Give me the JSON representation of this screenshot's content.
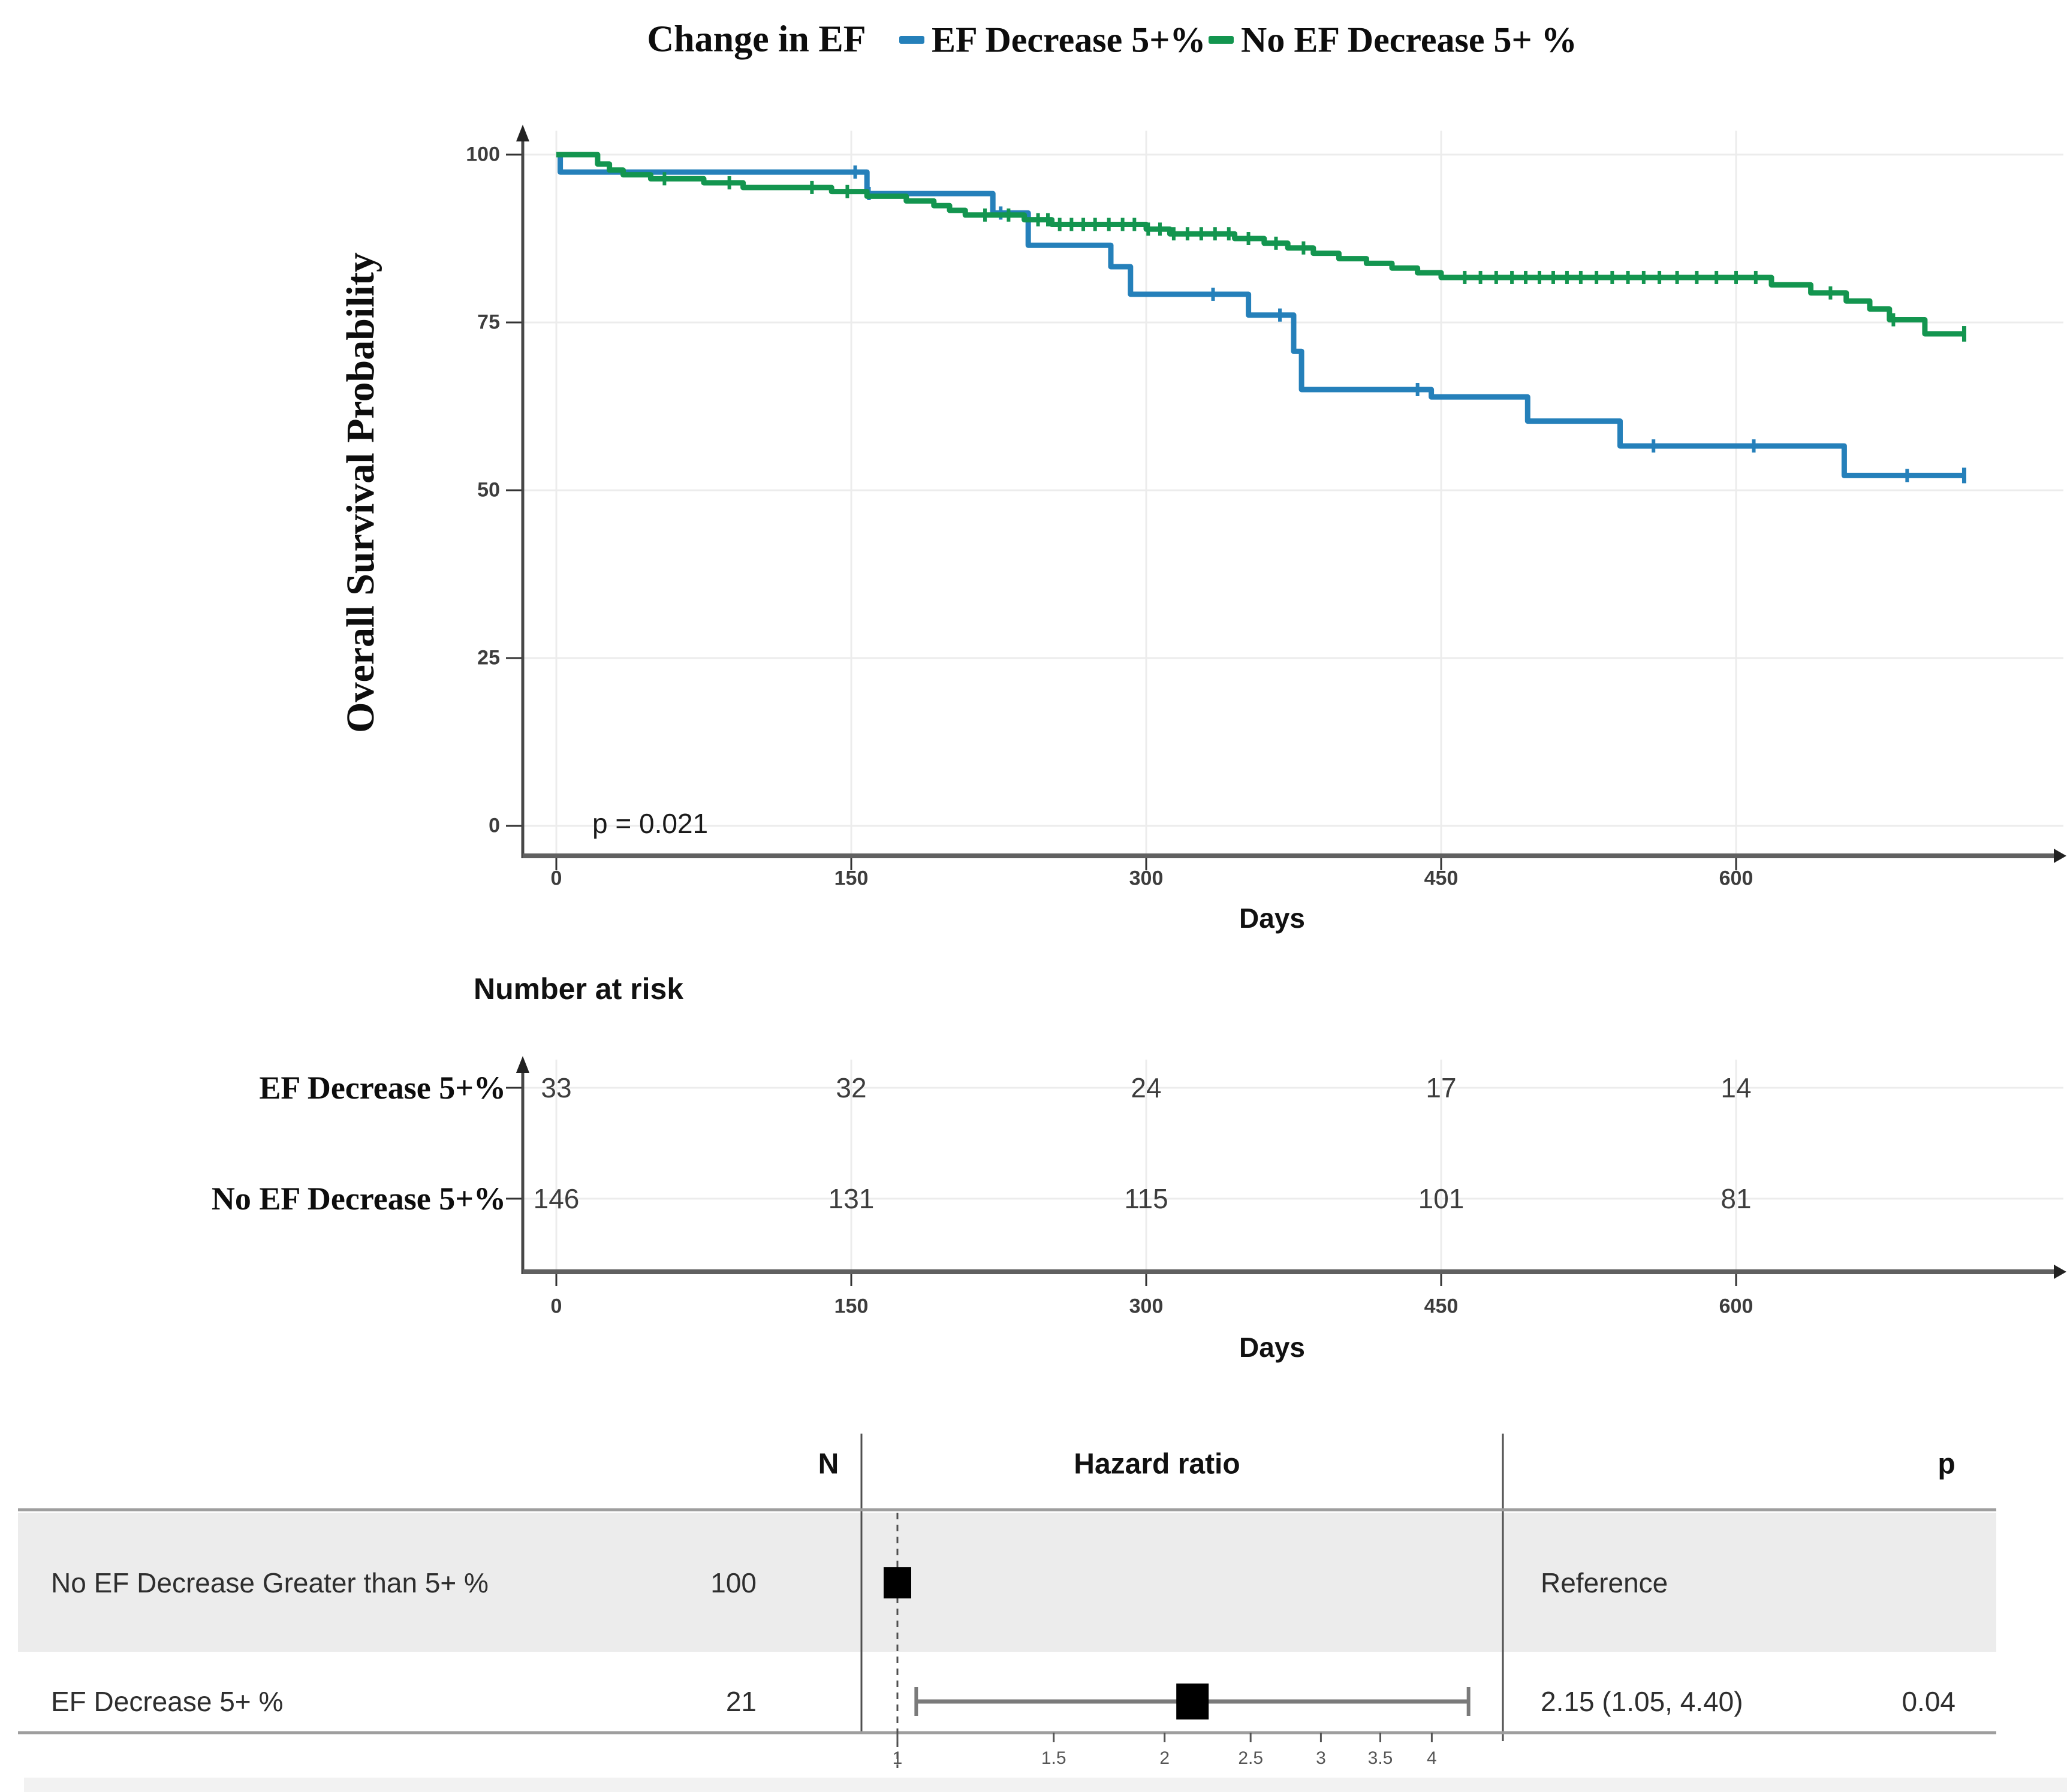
{
  "chart_data": {
    "km": {
      "type": "line",
      "subtype": "kaplan-meier-step",
      "title": "Change in EF",
      "ylabel": "Overall Survival Probability",
      "xlabel": "Days",
      "pvalue_label": "p = 0.021",
      "ylim": [
        0,
        100
      ],
      "yticks": [
        100,
        75,
        50,
        25,
        0
      ],
      "xticks": [
        0,
        150,
        300,
        450,
        600
      ],
      "grid": "on",
      "legend_position": "top",
      "series": [
        {
          "name": "EF Decrease 5+%",
          "color": "#2580ba",
          "steps": [
            [
              0,
              100
            ],
            [
              2,
              100
            ],
            [
              2,
              97.4
            ],
            [
              158,
              97.4
            ],
            [
              158,
              94.2
            ],
            [
              222,
              94.2
            ],
            [
              222,
              91.3
            ],
            [
              240,
              91.3
            ],
            [
              240,
              86.5
            ],
            [
              282,
              86.5
            ],
            [
              282,
              83.3
            ],
            [
              292,
              83.3
            ],
            [
              292,
              79.2
            ],
            [
              352,
              79.2
            ],
            [
              352,
              76.1
            ],
            [
              375,
              76.1
            ],
            [
              375,
              70.7
            ],
            [
              379,
              70.7
            ],
            [
              379,
              65.0
            ],
            [
              445,
              65.0
            ],
            [
              445,
              63.9
            ],
            [
              494,
              63.9
            ],
            [
              494,
              60.3
            ],
            [
              541,
              60.3
            ],
            [
              541,
              56.6
            ],
            [
              655,
              56.6
            ],
            [
              655,
              52.2
            ],
            [
              716,
              52.2
            ]
          ],
          "censor_days": [
            152,
            159,
            226,
            334,
            368,
            438,
            558,
            609,
            687
          ],
          "terminal_day": 716
        },
        {
          "name": "No EF Decrease 5+ %",
          "color": "#13954f",
          "steps": [
            [
              0,
              100
            ],
            [
              21,
              100
            ],
            [
              21,
              98.6
            ],
            [
              27,
              98.6
            ],
            [
              27,
              97.7
            ],
            [
              34,
              97.7
            ],
            [
              34,
              97.0
            ],
            [
              48,
              97.0
            ],
            [
              48,
              96.4
            ],
            [
              75,
              96.4
            ],
            [
              75,
              95.8
            ],
            [
              95,
              95.8
            ],
            [
              95,
              95.1
            ],
            [
              140,
              95.1
            ],
            [
              140,
              94.5
            ],
            [
              158,
              94.5
            ],
            [
              158,
              93.8
            ],
            [
              178,
              93.8
            ],
            [
              178,
              93.1
            ],
            [
              192,
              93.1
            ],
            [
              192,
              92.4
            ],
            [
              200,
              92.4
            ],
            [
              200,
              91.7
            ],
            [
              208,
              91.7
            ],
            [
              208,
              91.0
            ],
            [
              238,
              91.0
            ],
            [
              238,
              90.3
            ],
            [
              252,
              90.3
            ],
            [
              252,
              89.6
            ],
            [
              300,
              89.6
            ],
            [
              300,
              88.9
            ],
            [
              312,
              88.9
            ],
            [
              312,
              88.2
            ],
            [
              345,
              88.2
            ],
            [
              345,
              87.5
            ],
            [
              360,
              87.5
            ],
            [
              360,
              86.8
            ],
            [
              372,
              86.8
            ],
            [
              372,
              86.1
            ],
            [
              385,
              86.1
            ],
            [
              385,
              85.3
            ],
            [
              398,
              85.3
            ],
            [
              398,
              84.5
            ],
            [
              412,
              84.5
            ],
            [
              412,
              83.8
            ],
            [
              425,
              83.8
            ],
            [
              425,
              83.1
            ],
            [
              438,
              83.1
            ],
            [
              438,
              82.4
            ],
            [
              450,
              82.4
            ],
            [
              450,
              81.7
            ],
            [
              618,
              81.7
            ],
            [
              618,
              80.6
            ],
            [
              638,
              80.6
            ],
            [
              638,
              79.4
            ],
            [
              656,
              79.4
            ],
            [
              656,
              78.2
            ],
            [
              668,
              78.2
            ],
            [
              668,
              77.0
            ],
            [
              678,
              77.0
            ],
            [
              678,
              75.4
            ],
            [
              696,
              75.4
            ],
            [
              696,
              73.3
            ],
            [
              716,
              73.3
            ]
          ],
          "censor_days": [
            55,
            88,
            130,
            148,
            218,
            230,
            245,
            250,
            256,
            262,
            268,
            274,
            281,
            288,
            294,
            301,
            307,
            314,
            321,
            328,
            335,
            342,
            352,
            366,
            380,
            462,
            470,
            478,
            486,
            493,
            500,
            507,
            514,
            521,
            529,
            537,
            545,
            553,
            561,
            570,
            580,
            590,
            600,
            610,
            648,
            680
          ],
          "terminal_day": 716
        }
      ]
    },
    "risk_table": {
      "type": "table",
      "title": "Number at risk",
      "xlabel": "Days",
      "xticks": [
        0,
        150,
        300,
        450,
        600
      ],
      "rows": [
        {
          "label": "EF Decrease 5+%",
          "values": [
            "33",
            "32",
            "24",
            "17",
            "14"
          ]
        },
        {
          "label": "No EF Decrease 5+%",
          "values": [
            "146",
            "131",
            "115",
            "101",
            "81"
          ]
        }
      ]
    },
    "forest": {
      "type": "scatter",
      "subtype": "forest-plot",
      "columns": {
        "n": "N",
        "hazard": "Hazard ratio",
        "p": "p"
      },
      "axis_scale": "log",
      "axis_ticks": [
        "1",
        "1.5",
        "2",
        "2.5",
        "3",
        "3.5",
        "4"
      ],
      "axis_tick_values": [
        1,
        1.5,
        2,
        2.5,
        3,
        3.5,
        4
      ],
      "reference_line": 1,
      "shade_color": "#ececec",
      "rows": [
        {
          "label": "No EF Decrease Greater than 5+ %",
          "n": "100",
          "hr": 1,
          "ci_low": null,
          "ci_high": null,
          "hr_text": "Reference",
          "p_text": "",
          "shaded": true
        },
        {
          "label": "EF Decrease 5+ %",
          "n": "21",
          "hr": 2.15,
          "ci_low": 1.05,
          "ci_high": 4.4,
          "hr_text": "2.15 (1.05, 4.40)",
          "p_text": "0.04",
          "shaded": false
        }
      ]
    }
  }
}
